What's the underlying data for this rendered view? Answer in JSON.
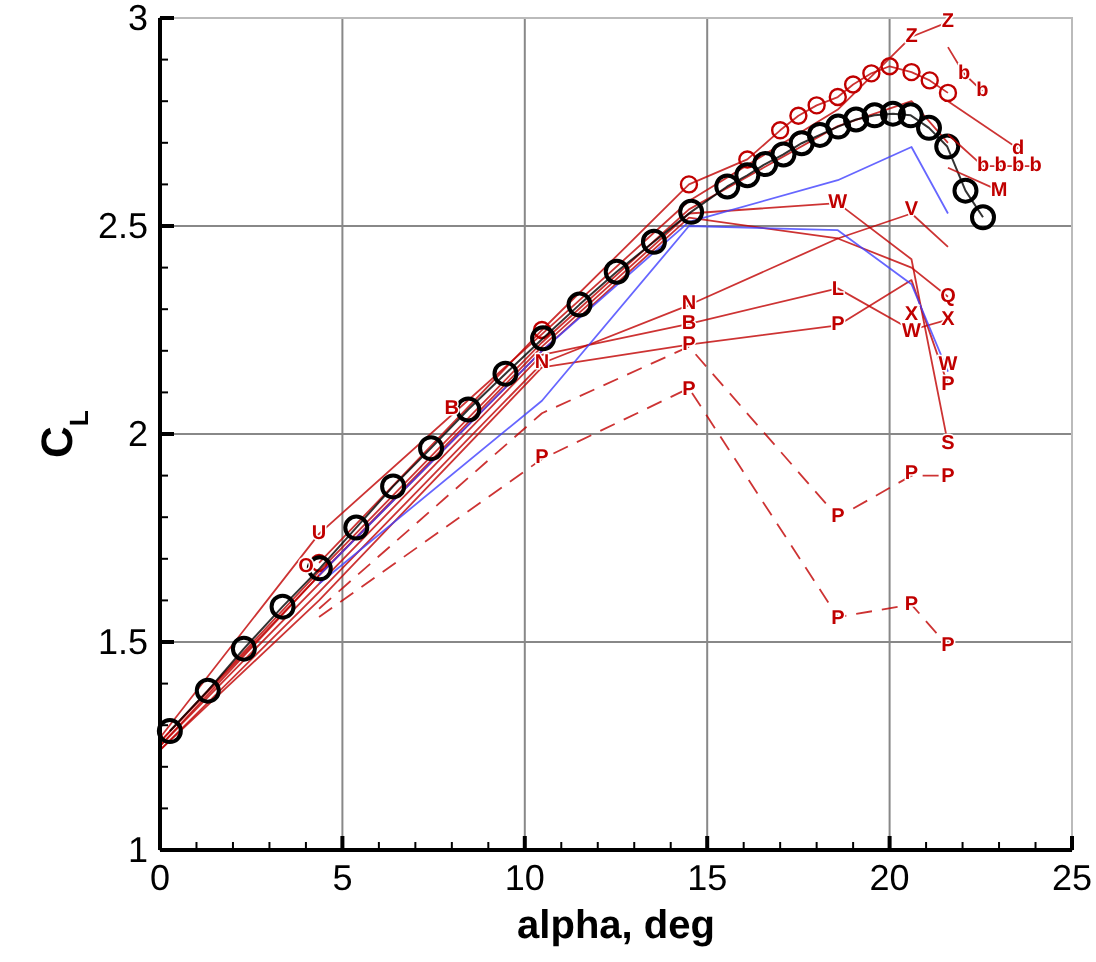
{
  "chart_data": {
    "type": "line",
    "xlabel": "alpha, deg",
    "ylabel": "C$_{L}$",
    "xlim": [
      0,
      25
    ],
    "ylim": [
      1,
      3
    ],
    "xticks": [
      0,
      {
        "value": 1,
        "label": null
      },
      {
        "value": 2,
        "label": null
      },
      {
        "value": 3,
        "label": null
      },
      {
        "value": 4,
        "label": null
      },
      5,
      {
        "value": 6,
        "label": null
      },
      {
        "value": 7,
        "label": null
      },
      {
        "value": 8,
        "label": null
      },
      {
        "value": 9,
        "label": null
      },
      10,
      {
        "value": 11,
        "label": null
      },
      {
        "value": 12,
        "label": null
      },
      {
        "value": 13,
        "label": null
      },
      {
        "value": 14,
        "label": null
      },
      15,
      {
        "value": 16,
        "label": null
      },
      {
        "value": 17,
        "label": null
      },
      {
        "value": 18,
        "label": null
      },
      {
        "value": 19,
        "label": null
      },
      20,
      {
        "value": 21,
        "label": null
      },
      {
        "value": 22,
        "label": null
      },
      {
        "value": 23,
        "label": null
      },
      {
        "value": 24,
        "label": null
      },
      25
    ],
    "yticks": [
      1,
      {
        "value": 1.1,
        "label": null
      },
      {
        "value": 1.2,
        "label": null
      },
      {
        "value": 1.3,
        "label": null
      },
      {
        "value": 1.4,
        "label": null
      },
      1.5,
      {
        "value": 1.6,
        "label": null
      },
      {
        "value": 1.7,
        "label": null
      },
      {
        "value": 1.8,
        "label": null
      },
      {
        "value": 1.9,
        "label": null
      },
      2,
      {
        "value": 2.1,
        "label": null
      },
      {
        "value": 2.2,
        "label": null
      },
      {
        "value": 2.3,
        "label": null
      },
      {
        "value": 2.4,
        "label": null
      },
      2.5,
      {
        "value": 2.6,
        "label": null
      },
      {
        "value": 2.7,
        "label": null
      },
      {
        "value": 2.8,
        "label": null
      },
      {
        "value": 2.9,
        "label": null
      },
      3
    ],
    "grid": true,
    "marker": "none",
    "line_style": "solid",
    "series": [
      {
        "color": "#c00000",
        "marker": "circle",
        "x": [
          4.36,
          10.47,
          14.5,
          16.1,
          17.0,
          17.5,
          18.0,
          18.58,
          19.0,
          19.5,
          20.0,
          20.6,
          21.1,
          21.6
        ],
        "values": [
          1.69,
          2.25,
          2.6,
          2.66,
          2.73,
          2.765,
          2.79,
          2.81,
          2.84,
          2.867,
          2.884,
          2.87,
          2.85,
          2.82
        ]
      },
      {
        "color": "#c00000",
        "x": [
          0,
          4.36,
          10.47,
          14.5,
          18.58,
          20.6,
          21.6
        ],
        "values": [
          1.27,
          1.76,
          2.24,
          2.56,
          2.78,
          2.955,
          2.99
        ]
      },
      {
        "color": "#c00000",
        "x": [
          0,
          4.36,
          10.47,
          14.5,
          18.58,
          20.6,
          21.6
        ],
        "values": [
          1.26,
          1.67,
          2.22,
          2.54,
          2.74,
          2.8,
          2.7
        ]
      },
      {
        "color": "#c00000",
        "x": [
          0,
          4.36,
          10.47,
          14.5,
          18.58,
          20.6,
          21.6
        ],
        "values": [
          1.25,
          1.66,
          2.2,
          2.52,
          2.47,
          2.53,
          2.45
        ]
      },
      {
        "color": "#c00000",
        "x": [
          0,
          4.36,
          10.47,
          14.5,
          18.58,
          20.6,
          21.6
        ],
        "values": [
          1.24,
          1.62,
          2.17,
          2.31,
          2.47,
          2.4,
          2.33
        ]
      },
      {
        "color": "#c00000",
        "x": [
          0,
          4.36,
          10.47,
          14.5,
          18.58,
          20.6,
          21.6
        ],
        "values": [
          1.25,
          1.64,
          2.19,
          2.265,
          2.35,
          2.25,
          2.275
        ]
      },
      {
        "color": "#c00000",
        "x": [
          0,
          4.36,
          10.47,
          14.5,
          18.58,
          20.6,
          21.6
        ],
        "values": [
          1.24,
          1.6,
          2.16,
          2.215,
          2.261,
          2.37,
          2.118
        ]
      },
      {
        "color": "#c00000",
        "x": [
          0,
          4.36,
          10.47,
          14.5,
          18.58,
          20.6,
          21.6
        ],
        "values": [
          1.26,
          1.66,
          2.21,
          2.53,
          2.555,
          2.42,
          1.977
        ]
      },
      {
        "color": "#c00000",
        "line_style": "dashed",
        "x": [
          4.36,
          10.47,
          14.5,
          18.58,
          20.6,
          21.6
        ],
        "values": [
          1.58,
          2.05,
          2.21,
          1.8,
          1.9,
          1.9
        ]
      },
      {
        "color": "#c00000",
        "line_style": "dashed",
        "x": [
          4.36,
          10.47,
          14.5,
          18.58,
          20.6,
          21.6
        ],
        "values": [
          1.56,
          1.94,
          2.11,
          1.56,
          1.59,
          1.49
        ]
      },
      {
        "color": "#4040ff",
        "x": [
          4.36,
          10.47,
          14.5,
          18.58,
          20.6,
          21.6
        ],
        "values": [
          1.64,
          2.08,
          2.5,
          2.49,
          2.36,
          2.15
        ]
      },
      {
        "color": "#4040ff",
        "x": [
          4.36,
          10.47,
          14.5,
          18.58,
          20.6,
          21.6
        ],
        "values": [
          1.66,
          2.2,
          2.51,
          2.61,
          2.69,
          2.53
        ]
      },
      {
        "color": "#000000",
        "marker": "circle",
        "x": [
          0.27,
          1.31,
          2.3,
          3.36,
          4.38,
          5.38,
          6.39,
          7.43,
          8.45,
          9.47,
          10.5,
          11.5,
          12.52,
          13.54,
          14.56,
          15.55,
          16.1,
          16.59,
          17.09,
          17.59,
          18.09,
          18.59,
          19.08,
          19.59,
          20.09,
          20.58,
          21.08,
          21.58,
          22.08,
          22.56
        ],
        "values": [
          1.286,
          1.383,
          1.484,
          1.585,
          1.677,
          1.775,
          1.874,
          1.966,
          2.059,
          2.145,
          2.23,
          2.311,
          2.39,
          2.462,
          2.534,
          2.595,
          2.622,
          2.649,
          2.672,
          2.699,
          2.719,
          2.739,
          2.756,
          2.766,
          2.77,
          2.766,
          2.736,
          2.691,
          2.585,
          2.521
        ]
      },
      {
        "color": "#c00000",
        "x": [
          21.6,
          22.56,
          23.04,
          23.52,
          24.0
        ],
        "values": [
          2.72,
          2.644,
          2.644,
          2.644,
          2.644
        ]
      },
      {
        "color": "#c00000",
        "x": [
          21.6,
          23.0
        ],
        "values": [
          2.64,
          2.585
        ]
      },
      {
        "color": "#c00000",
        "x": [
          21.6,
          22.04,
          22.54
        ],
        "values": [
          2.93,
          2.866,
          2.824
        ]
      },
      {
        "color": "#c00000",
        "x": [
          21.6,
          23.52
        ],
        "values": [
          2.8,
          2.686
        ]
      }
    ],
    "annotations": [
      {
        "text": "P",
        "x": 10.47,
        "y": 1.943
      },
      {
        "text": "P",
        "x": 14.5,
        "y": 2.106
      },
      {
        "text": "P",
        "x": 18.58,
        "y": 1.555
      },
      {
        "text": "P",
        "x": 20.6,
        "y": 1.59
      },
      {
        "text": "P",
        "x": 21.6,
        "y": 1.491
      },
      {
        "text": "P",
        "x": 18.58,
        "y": 1.8
      },
      {
        "text": "P",
        "x": 20.6,
        "y": 1.904
      },
      {
        "text": "P",
        "x": 21.6,
        "y": 1.896
      },
      {
        "text": "P",
        "x": 14.5,
        "y": 2.215
      },
      {
        "text": "P",
        "x": 18.58,
        "y": 2.261
      },
      {
        "text": "P",
        "x": 21.6,
        "y": 2.118
      },
      {
        "text": "N",
        "x": 14.5,
        "y": 2.313
      },
      {
        "text": "B",
        "x": 14.5,
        "y": 2.265
      },
      {
        "text": "L",
        "x": 18.58,
        "y": 2.346
      },
      {
        "text": "S",
        "x": 21.6,
        "y": 1.977
      },
      {
        "text": "X",
        "x": 20.6,
        "y": 2.287
      },
      {
        "text": "X",
        "x": 21.6,
        "y": 2.275
      },
      {
        "text": "W",
        "x": 20.6,
        "y": 2.245
      },
      {
        "text": "W",
        "x": 18.58,
        "y": 2.555
      },
      {
        "text": "W",
        "x": 21.6,
        "y": 2.165
      },
      {
        "text": "V",
        "x": 20.6,
        "y": 2.538
      },
      {
        "text": "Z",
        "x": 20.6,
        "y": 2.955
      },
      {
        "text": "Z",
        "x": 21.6,
        "y": 2.99
      },
      {
        "text": "Q",
        "x": 21.6,
        "y": 2.33
      },
      {
        "text": "M",
        "x": 23.0,
        "y": 2.585
      },
      {
        "text": "d",
        "x": 23.52,
        "y": 2.686
      },
      {
        "text": "b",
        "x": 22.56,
        "y": 2.644
      },
      {
        "text": "b",
        "x": 23.04,
        "y": 2.644
      },
      {
        "text": "b",
        "x": 23.52,
        "y": 2.644
      },
      {
        "text": "b",
        "x": 24.0,
        "y": 2.644
      },
      {
        "text": "b",
        "x": 22.04,
        "y": 2.866
      },
      {
        "text": "b",
        "x": 22.54,
        "y": 2.824
      },
      {
        "text": "N",
        "x": 10.47,
        "y": 2.17
      },
      {
        "text": "B",
        "x": 8.0,
        "y": 2.06
      },
      {
        "text": "U",
        "x": 4.36,
        "y": 1.76
      },
      {
        "text": "O",
        "x": 4.0,
        "y": 1.68
      }
    ]
  }
}
